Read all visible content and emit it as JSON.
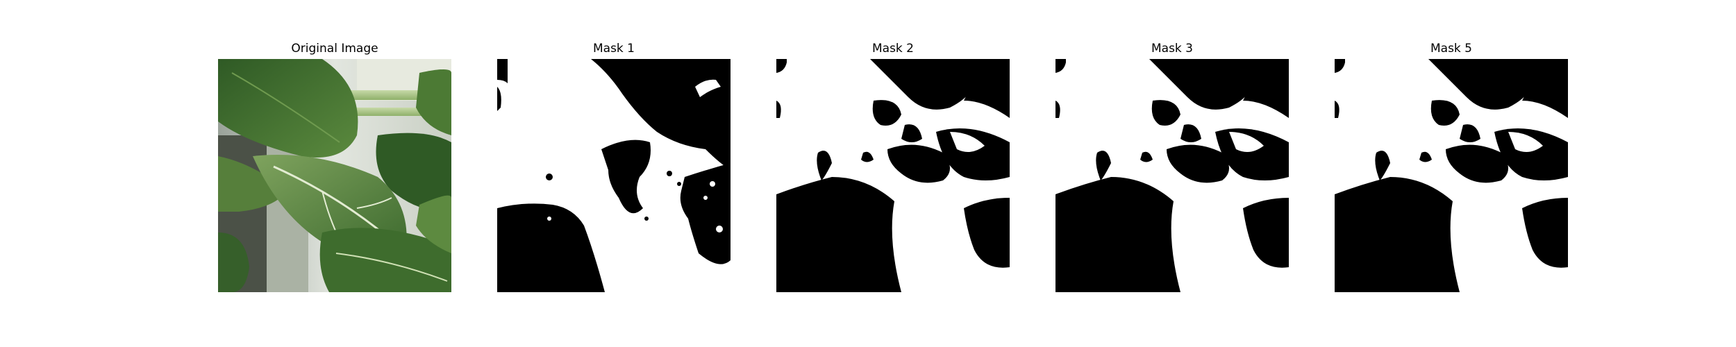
{
  "figure": {
    "panels": [
      {
        "title": "Original Image"
      },
      {
        "title": "Mask 1"
      },
      {
        "title": "Mask 2"
      },
      {
        "title": "Mask 3"
      },
      {
        "title": "Mask 5"
      }
    ],
    "colors": {
      "background": "#ffffff",
      "mask_foreground": "#ffffff",
      "mask_background": "#000000",
      "leaf_dark": "#3f6b2f",
      "leaf_light": "#8fb06a",
      "window_light": "#d9ddd3"
    }
  }
}
